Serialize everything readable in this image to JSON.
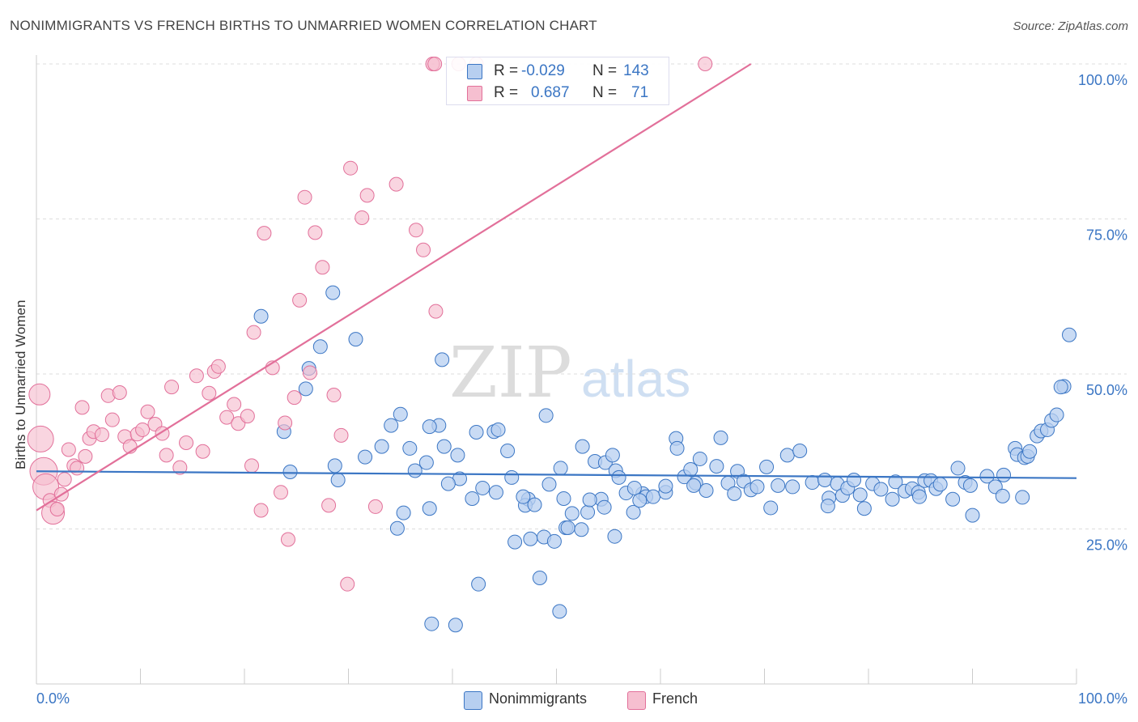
{
  "title": "NONIMMIGRANTS VS FRENCH BIRTHS TO UNMARRIED WOMEN CORRELATION CHART",
  "source": "Source: ZipAtlas.com",
  "watermark": {
    "zip": "ZIP",
    "atlas": "atlas"
  },
  "colors": {
    "blue": "#3b76c4",
    "blue_fill": "#b7cff0",
    "pink": "#e2709a",
    "pink_fill": "#f6bfd0",
    "grid": "#dddddd",
    "tick_label": "#3b76c4"
  },
  "stats": {
    "blue": {
      "r_label": "R =",
      "r": "-0.029",
      "n_label": "N =",
      "n": "143"
    },
    "pink": {
      "r_label": "R =",
      "r": "0.687",
      "n_label": "N =",
      "n": "71"
    }
  },
  "legend": {
    "blue": "Nonimmigrants",
    "pink": "French"
  },
  "chart_data": {
    "type": "scatter",
    "title": "NONIMMIGRANTS VS FRENCH BIRTHS TO UNMARRIED WOMEN CORRELATION CHART",
    "xlabel": "",
    "ylabel": "Births to Unmarried Women",
    "xlim": [
      0,
      100
    ],
    "ylim": [
      0,
      100
    ],
    "x_tick_labels": [
      "0.0%",
      "100.0%"
    ],
    "y_tick_labels": [
      "25.0%",
      "50.0%",
      "75.0%",
      "100.0%"
    ],
    "y_ticks": [
      25,
      50,
      75,
      100
    ],
    "grid": true,
    "legend_position": "bottom-center",
    "series": [
      {
        "name": "Nonimmigrants",
        "color": "#3b76c4",
        "trend": {
          "x": [
            0,
            100
          ],
          "y": [
            34.3,
            33.2
          ]
        },
        "points": [
          [
            21.6,
            59.3
          ],
          [
            28.5,
            63.1
          ],
          [
            27.3,
            54.4
          ],
          [
            30.7,
            55.6
          ],
          [
            25.9,
            47.6
          ],
          [
            26.2,
            50.9
          ],
          [
            39.0,
            52.3
          ],
          [
            23.8,
            40.7
          ],
          [
            24.4,
            34.2
          ],
          [
            28.7,
            35.2
          ],
          [
            29.0,
            32.9
          ],
          [
            31.6,
            36.6
          ],
          [
            33.2,
            38.3
          ],
          [
            35.0,
            43.5
          ],
          [
            35.9,
            38.0
          ],
          [
            36.4,
            34.4
          ],
          [
            37.8,
            28.3
          ],
          [
            38.7,
            41.7
          ],
          [
            40.5,
            36.9
          ],
          [
            40.7,
            33.1
          ],
          [
            41.9,
            29.9
          ],
          [
            42.3,
            40.6
          ],
          [
            42.9,
            31.6
          ],
          [
            44.0,
            40.7
          ],
          [
            44.4,
            41.0
          ],
          [
            45.3,
            37.6
          ],
          [
            45.7,
            33.3
          ],
          [
            47.3,
            29.8
          ],
          [
            47.0,
            28.8
          ],
          [
            49.0,
            43.3
          ],
          [
            49.3,
            32.2
          ],
          [
            50.4,
            34.8
          ],
          [
            50.9,
            25.2
          ],
          [
            50.7,
            29.9
          ],
          [
            51.5,
            27.5
          ],
          [
            52.5,
            38.3
          ],
          [
            53.7,
            35.9
          ],
          [
            54.3,
            29.8
          ],
          [
            54.7,
            35.7
          ],
          [
            55.4,
            36.9
          ],
          [
            55.7,
            34.4
          ],
          [
            56.7,
            30.8
          ],
          [
            57.4,
            27.7
          ],
          [
            58.3,
            30.7
          ],
          [
            58.6,
            30.2
          ],
          [
            59.3,
            30.2
          ],
          [
            60.5,
            30.9
          ],
          [
            61.5,
            39.6
          ],
          [
            61.6,
            38.0
          ],
          [
            62.3,
            33.4
          ],
          [
            62.9,
            34.6
          ],
          [
            63.4,
            32.4
          ],
          [
            63.8,
            36.3
          ],
          [
            64.4,
            31.2
          ],
          [
            65.4,
            35.1
          ],
          [
            65.8,
            39.7
          ],
          [
            66.5,
            32.4
          ],
          [
            67.1,
            30.7
          ],
          [
            67.4,
            34.3
          ],
          [
            68.0,
            32.7
          ],
          [
            68.7,
            31.3
          ],
          [
            69.3,
            31.8
          ],
          [
            70.2,
            35.0
          ],
          [
            70.6,
            28.4
          ],
          [
            71.3,
            32.0
          ],
          [
            72.2,
            36.9
          ],
          [
            72.7,
            31.8
          ],
          [
            73.4,
            37.6
          ],
          [
            74.6,
            32.5
          ],
          [
            75.8,
            32.9
          ],
          [
            76.2,
            30.0
          ],
          [
            77.0,
            32.3
          ],
          [
            77.5,
            30.4
          ],
          [
            78.0,
            31.6
          ],
          [
            78.6,
            32.9
          ],
          [
            79.2,
            30.5
          ],
          [
            79.6,
            28.3
          ],
          [
            80.4,
            32.3
          ],
          [
            81.2,
            31.4
          ],
          [
            82.3,
            29.8
          ],
          [
            82.6,
            32.6
          ],
          [
            83.5,
            31.1
          ],
          [
            84.2,
            31.5
          ],
          [
            84.8,
            30.9
          ],
          [
            85.4,
            32.8
          ],
          [
            86.0,
            32.8
          ],
          [
            86.5,
            31.5
          ],
          [
            86.9,
            32.2
          ],
          [
            88.1,
            29.8
          ],
          [
            88.6,
            34.8
          ],
          [
            89.3,
            32.5
          ],
          [
            89.8,
            32.0
          ],
          [
            91.4,
            33.5
          ],
          [
            92.2,
            31.8
          ],
          [
            92.9,
            30.3
          ],
          [
            93.0,
            33.7
          ],
          [
            94.1,
            38.0
          ],
          [
            94.3,
            37.0
          ],
          [
            95.0,
            36.5
          ],
          [
            95.3,
            36.7
          ],
          [
            95.5,
            37.5
          ],
          [
            96.2,
            40.0
          ],
          [
            96.6,
            40.8
          ],
          [
            97.2,
            41.0
          ],
          [
            97.6,
            42.5
          ],
          [
            98.1,
            43.4
          ],
          [
            99.3,
            56.3
          ],
          [
            98.8,
            48.0
          ],
          [
            98.5,
            47.9
          ],
          [
            37.8,
            41.5
          ],
          [
            39.2,
            38.3
          ],
          [
            40.3,
            9.5
          ],
          [
            42.5,
            16.1
          ],
          [
            46.0,
            22.9
          ],
          [
            46.8,
            30.2
          ],
          [
            47.5,
            23.4
          ],
          [
            48.4,
            17.1
          ],
          [
            48.8,
            23.7
          ],
          [
            49.8,
            23.0
          ],
          [
            50.3,
            11.7
          ],
          [
            51.1,
            25.2
          ],
          [
            52.4,
            24.9
          ],
          [
            53.0,
            27.7
          ],
          [
            54.6,
            28.5
          ],
          [
            55.6,
            23.8
          ],
          [
            57.5,
            31.6
          ],
          [
            58.0,
            29.6
          ],
          [
            60.5,
            31.9
          ],
          [
            63.2,
            32.0
          ],
          [
            34.7,
            25.1
          ],
          [
            35.3,
            27.6
          ],
          [
            34.1,
            41.7
          ],
          [
            38.0,
            9.7
          ],
          [
            37.5,
            35.7
          ],
          [
            39.6,
            32.3
          ],
          [
            44.2,
            30.9
          ],
          [
            47.9,
            28.9
          ],
          [
            53.2,
            29.7
          ],
          [
            56.0,
            33.3
          ],
          [
            76.1,
            28.7
          ],
          [
            84.9,
            30.2
          ],
          [
            90.0,
            27.2
          ],
          [
            94.8,
            30.1
          ]
        ]
      },
      {
        "name": "French",
        "color": "#e2709a",
        "trend": {
          "x": [
            0,
            68.7
          ],
          "y": [
            28.0,
            100.0
          ]
        },
        "points": [
          [
            0.3,
            46.7
          ],
          [
            0.4,
            39.5
          ],
          [
            0.7,
            34.3
          ],
          [
            0.9,
            31.8
          ],
          [
            1.3,
            29.6
          ],
          [
            1.6,
            27.6
          ],
          [
            2.0,
            28.2
          ],
          [
            2.4,
            30.6
          ],
          [
            2.7,
            33.0
          ],
          [
            3.1,
            37.8
          ],
          [
            3.6,
            35.2
          ],
          [
            3.9,
            34.8
          ],
          [
            4.4,
            44.6
          ],
          [
            4.7,
            36.7
          ],
          [
            5.1,
            39.6
          ],
          [
            5.5,
            40.7
          ],
          [
            6.3,
            40.2
          ],
          [
            6.9,
            46.5
          ],
          [
            7.3,
            42.6
          ],
          [
            8.0,
            47.0
          ],
          [
            8.5,
            39.9
          ],
          [
            9.0,
            38.3
          ],
          [
            9.7,
            40.3
          ],
          [
            10.2,
            41.0
          ],
          [
            10.7,
            43.9
          ],
          [
            11.4,
            41.9
          ],
          [
            12.1,
            40.4
          ],
          [
            12.5,
            36.9
          ],
          [
            13.0,
            47.9
          ],
          [
            13.8,
            34.9
          ],
          [
            14.4,
            38.9
          ],
          [
            15.4,
            49.7
          ],
          [
            16.0,
            37.5
          ],
          [
            16.6,
            46.9
          ],
          [
            17.1,
            50.4
          ],
          [
            17.5,
            51.2
          ],
          [
            18.3,
            43.0
          ],
          [
            19.0,
            45.1
          ],
          [
            19.4,
            42.0
          ],
          [
            20.3,
            43.2
          ],
          [
            20.7,
            35.2
          ],
          [
            20.9,
            56.7
          ],
          [
            21.6,
            28.0
          ],
          [
            21.9,
            72.7
          ],
          [
            22.7,
            51.0
          ],
          [
            23.5,
            30.9
          ],
          [
            23.9,
            42.1
          ],
          [
            24.2,
            23.3
          ],
          [
            24.8,
            46.2
          ],
          [
            25.3,
            61.9
          ],
          [
            25.8,
            78.5
          ],
          [
            26.3,
            50.2
          ],
          [
            26.8,
            72.8
          ],
          [
            27.5,
            67.2
          ],
          [
            28.1,
            28.8
          ],
          [
            28.6,
            46.6
          ],
          [
            29.3,
            40.1
          ],
          [
            29.9,
            16.1
          ],
          [
            30.2,
            83.2
          ],
          [
            31.3,
            75.2
          ],
          [
            31.8,
            78.8
          ],
          [
            32.6,
            28.6
          ],
          [
            34.6,
            80.6
          ],
          [
            36.5,
            73.2
          ],
          [
            37.2,
            70.0
          ],
          [
            38.4,
            60.1
          ],
          [
            38.1,
            100.0
          ],
          [
            38.3,
            100.0
          ],
          [
            40.6,
            100.0
          ],
          [
            42.3,
            100.0
          ],
          [
            64.3,
            100.0
          ]
        ]
      }
    ]
  }
}
